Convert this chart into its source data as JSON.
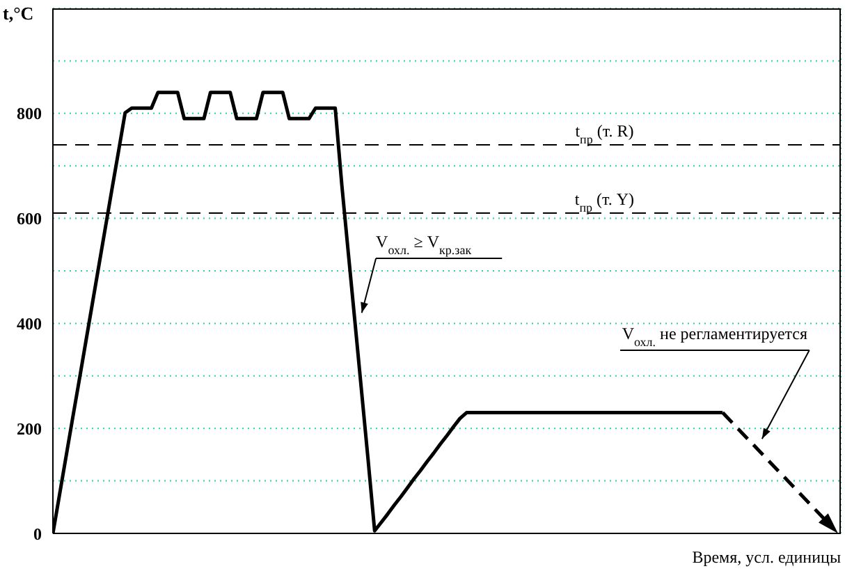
{
  "chart_data": {
    "type": "line",
    "xlabel": "Время, усл. единицы",
    "ylabel": "t,°C",
    "categories": [
      null,
      null,
      null,
      null,
      null,
      null,
      null,
      null,
      null,
      null,
      null,
      null,
      null,
      null,
      null,
      null,
      null,
      null,
      null,
      null,
      null,
      null,
      null,
      null,
      null,
      null,
      null,
      null,
      null,
      null,
      null,
      null,
      null,
      null,
      null,
      null,
      null,
      null,
      null,
      null,
      null,
      null,
      null,
      null,
      null,
      null,
      null,
      null,
      null,
      null,
      null,
      null,
      null,
      null,
      null,
      null,
      null,
      null,
      null,
      null,
      null,
      null,
      null,
      null,
      null,
      null,
      null,
      null,
      null,
      null,
      null,
      null,
      null,
      null,
      null,
      null,
      null,
      null,
      null,
      null,
      null,
      null,
      null,
      null,
      null,
      null,
      null,
      null,
      null,
      null,
      null,
      null,
      null,
      null,
      null,
      null,
      null,
      null,
      null,
      null,
      null,
      null,
      null,
      null,
      null,
      null,
      null,
      null,
      null,
      null,
      null,
      null,
      null,
      null,
      null,
      null,
      null,
      null,
      null,
      null,
      null
    ],
    "ylim": [
      0,
      1000
    ],
    "yticks": [
      0,
      {
        "value": 100,
        "label": null
      },
      200,
      {
        "value": 300,
        "label": null
      },
      400,
      {
        "value": 500,
        "label": null
      },
      600,
      {
        "value": 700,
        "label": null
      },
      800,
      {
        "value": 900,
        "label": null
      },
      {
        "value": 1000,
        "label": null
      }
    ],
    "tick_labels": "y",
    "grid": true,
    "marker": "none",
    "series": [
      {
        "color": "#000000",
        "line_style": "solid",
        "values": [
          0,
          73,
          146,
          219,
          291,
          364,
          437,
          510,
          583,
          656,
          728,
          801,
          810,
          810,
          810,
          810,
          840,
          840,
          840,
          840,
          790,
          790,
          790,
          790,
          840,
          840,
          840,
          840,
          790,
          790,
          790,
          790,
          840,
          840,
          840,
          840,
          790,
          790,
          790,
          790,
          810,
          810,
          810,
          810,
          664,
          533,
          403,
          272,
          141,
          5,
          21,
          37,
          54,
          70,
          87,
          104,
          120,
          137,
          153,
          170,
          186,
          203,
          219,
          230,
          230,
          230,
          230,
          230,
          230,
          230,
          230,
          230,
          230,
          230,
          230,
          230,
          230,
          230,
          230,
          230,
          230,
          230,
          230,
          230,
          230,
          230,
          230,
          230,
          230,
          230,
          230,
          230,
          230,
          230,
          230,
          230,
          230,
          230,
          230,
          230,
          230,
          230,
          230,
          null,
          null,
          null,
          null,
          null,
          null,
          null,
          null,
          null,
          null,
          null,
          null,
          null,
          null,
          null,
          null,
          null,
          null
        ]
      }
    ],
    "ref_lines": [
      {
        "axis": "y",
        "value": 740,
        "label": "t$_{пр}$ (т. R)",
        "line_style": "dashed",
        "color": "#000000"
      },
      {
        "axis": "y",
        "value": 610,
        "label": "t$_{пр}$ (т. Y)",
        "line_style": "dashed",
        "color": "#000000"
      }
    ],
    "annotations": [
      "V$_{охл.}$ ≥ V$_{кр.зак}$",
      "V$_{охл.}$ не регламентируется"
    ]
  }
}
